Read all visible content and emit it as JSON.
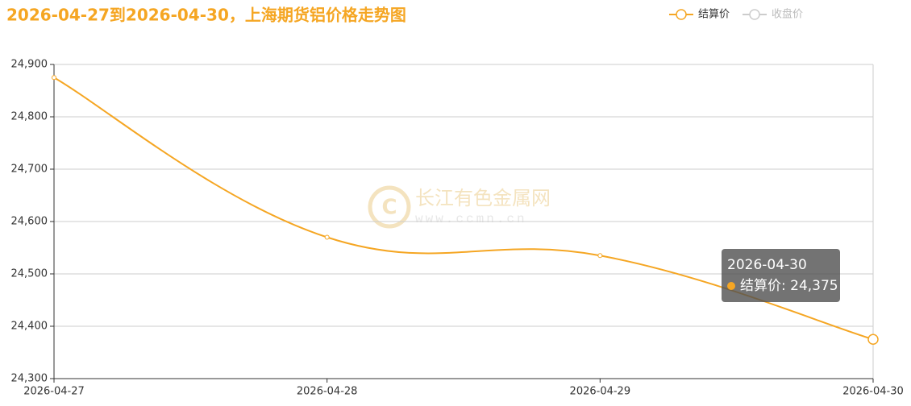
{
  "chart_data": {
    "type": "line",
    "title": "2026-04-27到2026-04-30，上海期货铝价格走势图",
    "categories": [
      "2026-04-27",
      "2026-04-28",
      "2026-04-29",
      "2026-04-30"
    ],
    "series": [
      {
        "name": "结算价",
        "color": "#f5a623",
        "values": [
          24875,
          24570,
          24535,
          24375
        ]
      },
      {
        "name": "收盘价",
        "color": "#cccccc",
        "values": [
          null,
          null,
          null,
          null
        ]
      }
    ],
    "ylim": [
      24300,
      24900
    ],
    "yticks": [
      {
        "value": 24300,
        "label": "24,300"
      },
      {
        "value": 24400,
        "label": "24,400"
      },
      {
        "value": 24500,
        "label": "24,500"
      },
      {
        "value": 24600,
        "label": "24,600"
      },
      {
        "value": 24700,
        "label": "24,700"
      },
      {
        "value": 24800,
        "label": "24,800"
      },
      {
        "value": 24900,
        "label": "24,900"
      }
    ],
    "grid": true,
    "smooth": true,
    "watermark": {
      "name": "长江有色金属网",
      "url": "www.ccmn.cn"
    },
    "tooltip": {
      "title": "2026-04-30",
      "text": "结算价: 24,375"
    }
  }
}
